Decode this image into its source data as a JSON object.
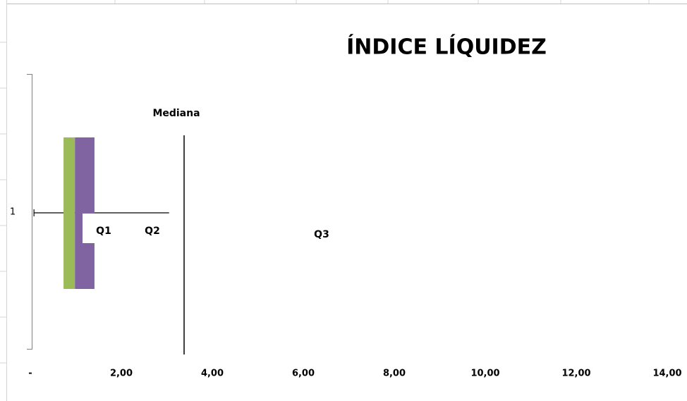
{
  "chart_data": {
    "type": "box",
    "title": "ÍNDICE LÍQUIDEZ",
    "categories": [
      "1"
    ],
    "series": [
      {
        "color": "none",
        "values": [
          0.73
        ]
      },
      {
        "color": "#9bbb59",
        "values": [
          0.25
        ]
      },
      {
        "color": "#8064a2",
        "values": [
          0.43
        ]
      }
    ],
    "whisker": [
      0.08,
      3.05
    ],
    "median": 3.38,
    "annotations": [
      "Mediana",
      "Q1",
      "Q2",
      "Q3"
    ],
    "xlim": [
      0,
      14.4
    ],
    "xticks": [
      {
        "value": 0,
        "label": "-"
      },
      {
        "value": 2,
        "label": "2,00"
      },
      {
        "value": 4,
        "label": "4,00"
      },
      {
        "value": 6,
        "label": "6,00"
      },
      {
        "value": 8,
        "label": "8,00"
      },
      {
        "value": 10,
        "label": "10,00"
      },
      {
        "value": 12,
        "label": "12,00"
      },
      {
        "value": 14,
        "label": "14,00"
      }
    ]
  }
}
